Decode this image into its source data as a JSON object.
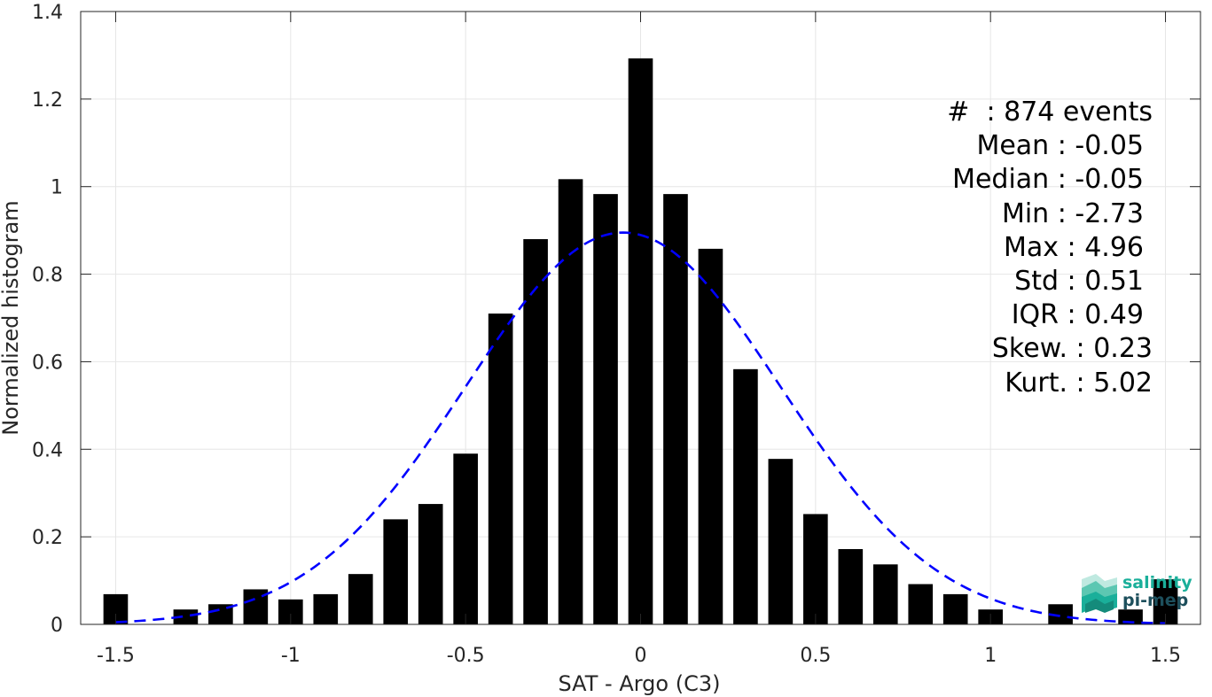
{
  "chart_data": {
    "type": "bar",
    "xlabel": "SAT - Argo (C3)",
    "ylabel": "Normalized histogram",
    "xlim": [
      -1.6,
      1.6
    ],
    "ylim": [
      0,
      1.4
    ],
    "xticks": [
      -1.5,
      -1,
      -0.5,
      0,
      0.5,
      1,
      1.5
    ],
    "xtick_labels": [
      "-1.5",
      "-1",
      "-0.5",
      "0",
      "0.5",
      "1",
      "1.5"
    ],
    "yticks": [
      0,
      0.2,
      0.4,
      0.6,
      0.8,
      1.0,
      1.2,
      1.4
    ],
    "ytick_labels": [
      "0",
      "0.2",
      "0.4",
      "0.6",
      "0.8",
      "1",
      "1.2",
      "1.4"
    ],
    "grid": true,
    "bar_width": 0.07,
    "bar_color": "#000000",
    "x": [
      -1.5,
      -1.4,
      -1.3,
      -1.2,
      -1.1,
      -1.0,
      -0.9,
      -0.8,
      -0.7,
      -0.6,
      -0.5,
      -0.4,
      -0.3,
      -0.2,
      -0.1,
      0.0,
      0.1,
      0.2,
      0.3,
      0.4,
      0.5,
      0.6,
      0.7,
      0.8,
      0.9,
      1.0,
      1.1,
      1.2,
      1.3,
      1.4,
      1.5
    ],
    "values": [
      0.069,
      0.0,
      0.034,
      0.046,
      0.08,
      0.057,
      0.069,
      0.115,
      0.24,
      0.275,
      0.39,
      0.71,
      0.88,
      1.017,
      0.983,
      1.293,
      0.983,
      0.858,
      0.583,
      0.378,
      0.252,
      0.172,
      0.137,
      0.092,
      0.069,
      0.034,
      0.0,
      0.046,
      0.0,
      0.034,
      0.103
    ],
    "fit_curve": {
      "type": "gaussian",
      "color": "#0000ff",
      "style": "dashed",
      "peak": 0.895,
      "mean": -0.05,
      "std": 0.45,
      "x_range": [
        -1.5,
        1.5
      ]
    }
  },
  "stats": [
    {
      "text": "#  : 874 events",
      "offset": 0
    },
    {
      "text": "Mean : -0.05",
      "offset": 10
    },
    {
      "text": "Median : -0.05",
      "offset": 10
    },
    {
      "text": "Min : -2.73",
      "offset": 10
    },
    {
      "text": "Max : 4.96",
      "offset": 10
    },
    {
      "text": "Std : 0.51",
      "offset": 10
    },
    {
      "text": "IQR : 0.49",
      "offset": 10
    },
    {
      "text": "Skew. : 0.23",
      "offset": 0
    },
    {
      "text": "Kurt. : 5.02",
      "offset": 0
    }
  ],
  "logo": {
    "line1": "salinity",
    "line2": "pi-mep",
    "color1": "#1aaf9a",
    "color2": "#1d4f5c"
  }
}
